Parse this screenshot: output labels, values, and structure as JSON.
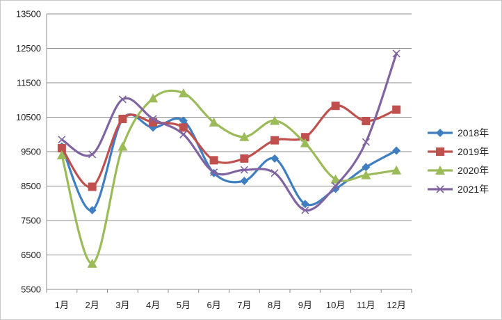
{
  "chart_data": {
    "type": "line",
    "title": "",
    "xlabel": "",
    "ylabel": "",
    "categories": [
      "1月",
      "2月",
      "3月",
      "4月",
      "5月",
      "6月",
      "7月",
      "8月",
      "9月",
      "10月",
      "11月",
      "12月"
    ],
    "ylim": [
      5500,
      13500
    ],
    "yticks": [
      5500,
      6500,
      7500,
      8500,
      9500,
      10500,
      11500,
      12500,
      13500
    ],
    "grid": "horizontal",
    "legend_position": "right",
    "series": [
      {
        "name": "2018年",
        "color": "#3f7ec1",
        "marker": "diamond",
        "values": [
          9650,
          7800,
          10450,
          10200,
          10400,
          8880,
          8650,
          9300,
          7980,
          8420,
          9050,
          9530
        ]
      },
      {
        "name": "2019年",
        "color": "#c0504d",
        "marker": "square",
        "values": [
          9600,
          8480,
          10450,
          10350,
          10200,
          9250,
          9300,
          9830,
          9920,
          10830,
          10390,
          10720
        ]
      },
      {
        "name": "2020年",
        "color": "#9bbb59",
        "marker": "triangle",
        "values": [
          9400,
          6250,
          9650,
          11050,
          11200,
          10350,
          9930,
          10400,
          9750,
          8700,
          8820,
          8960
        ]
      },
      {
        "name": "2021年",
        "color": "#8064a2",
        "marker": "x",
        "values": [
          9850,
          9420,
          11020,
          10450,
          10000,
          8900,
          8970,
          8880,
          7800,
          8500,
          9780,
          12350
        ]
      }
    ]
  }
}
